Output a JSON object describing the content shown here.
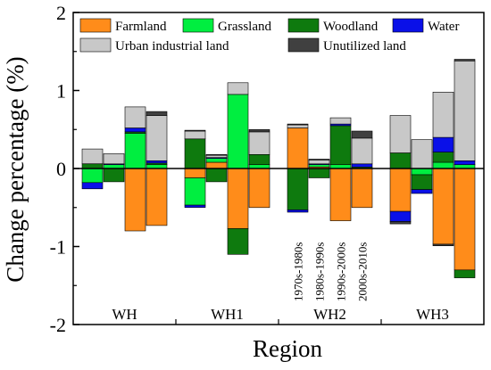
{
  "chart_data": {
    "type": "bar",
    "stacked": true,
    "xlabel": "Region",
    "ylabel": "Change percentage (%)",
    "ylim": [
      -2,
      2
    ],
    "yticks": [
      -2,
      -1,
      0,
      1,
      2
    ],
    "regions": [
      "WH",
      "WH1",
      "WH2",
      "WH3"
    ],
    "periods": [
      "1970s-1980s",
      "1980s-1990s",
      "1990s-2000s",
      "2000s-2010s"
    ],
    "period_labels_shown_under": "WH2",
    "legend": [
      {
        "name": "Farmland",
        "color": "#FF8C1A"
      },
      {
        "name": "Grassland",
        "color": "#00EE40"
      },
      {
        "name": "Woodland",
        "color": "#0E7A0E"
      },
      {
        "name": "Water",
        "color": "#0A10E8"
      },
      {
        "name": "Urban industrial land",
        "color": "#C8C8C8"
      },
      {
        "name": "Unutilized land",
        "color": "#404040"
      }
    ],
    "series_order": [
      "Farmland",
      "Grassland",
      "Woodland",
      "Water",
      "Urban industrial land",
      "Unutilized land"
    ],
    "bars": [
      {
        "region": "WH",
        "period": "1970s-1980s",
        "values": {
          "Farmland": 0.0,
          "Grassland": -0.18,
          "Woodland": 0.06,
          "Water": -0.08,
          "Urban industrial land": 0.19,
          "Unutilized land": 0.0
        }
      },
      {
        "region": "WH",
        "period": "1980s-1990s",
        "values": {
          "Farmland": 0.0,
          "Grassland": 0.05,
          "Woodland": -0.17,
          "Water": 0.01,
          "Urban industrial land": 0.13,
          "Unutilized land": 0.0
        }
      },
      {
        "region": "WH",
        "period": "1990s-2000s",
        "values": {
          "Farmland": -0.8,
          "Grassland": 0.45,
          "Woodland": 0.02,
          "Water": 0.05,
          "Urban industrial land": 0.27,
          "Unutilized land": 0.0
        }
      },
      {
        "region": "WH",
        "period": "2000s-2010s",
        "values": {
          "Farmland": -0.73,
          "Grassland": 0.05,
          "Woodland": 0.02,
          "Water": 0.03,
          "Urban industrial land": 0.58,
          "Unutilized land": 0.05
        }
      },
      {
        "region": "WH1",
        "period": "1970s-1980s",
        "values": {
          "Farmland": -0.12,
          "Grassland": -0.35,
          "Woodland": 0.38,
          "Water": -0.03,
          "Urban industrial land": 0.1,
          "Unutilized land": 0.01
        }
      },
      {
        "region": "WH1",
        "period": "1980s-1990s",
        "values": {
          "Farmland": 0.08,
          "Grassland": 0.05,
          "Woodland": -0.17,
          "Water": 0.01,
          "Urban industrial land": 0.03,
          "Unutilized land": 0.01
        }
      },
      {
        "region": "WH1",
        "period": "1990s-2000s",
        "values": {
          "Farmland": -0.77,
          "Grassland": 0.95,
          "Woodland": -0.33,
          "Water": 0.0,
          "Urban industrial land": 0.15,
          "Unutilized land": 0.0
        }
      },
      {
        "region": "WH1",
        "period": "2000s-2010s",
        "values": {
          "Farmland": -0.5,
          "Grassland": 0.05,
          "Woodland": 0.13,
          "Water": 0.0,
          "Urban industrial land": 0.29,
          "Unutilized land": 0.03
        }
      },
      {
        "region": "WH2",
        "period": "1970s-1980s",
        "values": {
          "Farmland": 0.52,
          "Grassland": 0.0,
          "Woodland": -0.53,
          "Water": -0.03,
          "Urban industrial land": 0.04,
          "Unutilized land": 0.01
        }
      },
      {
        "region": "WH2",
        "period": "1980s-1990s",
        "values": {
          "Farmland": 0.02,
          "Grassland": 0.03,
          "Woodland": -0.12,
          "Water": 0.01,
          "Urban industrial land": 0.05,
          "Unutilized land": 0.01
        }
      },
      {
        "region": "WH2",
        "period": "1990s-2000s",
        "values": {
          "Farmland": -0.67,
          "Grassland": 0.05,
          "Woodland": 0.5,
          "Water": 0.02,
          "Urban industrial land": 0.08,
          "Unutilized land": 0.0
        }
      },
      {
        "region": "WH2",
        "period": "2000s-2010s",
        "values": {
          "Farmland": -0.5,
          "Grassland": 0.0,
          "Woodland": 0.02,
          "Water": 0.04,
          "Urban industrial land": 0.33,
          "Unutilized land": 0.09
        }
      },
      {
        "region": "WH3",
        "period": "1970s-1980s",
        "values": {
          "Farmland": -0.55,
          "Grassland": 0.0,
          "Woodland": 0.2,
          "Water": -0.13,
          "Urban industrial land": 0.48,
          "Unutilized land": -0.03
        }
      },
      {
        "region": "WH3",
        "period": "1980s-1990s",
        "values": {
          "Farmland": 0.0,
          "Grassland": -0.08,
          "Woodland": -0.19,
          "Water": -0.05,
          "Urban industrial land": 0.37,
          "Unutilized land": 0.0
        }
      },
      {
        "region": "WH3",
        "period": "1990s-2000s",
        "values": {
          "Farmland": -0.97,
          "Grassland": 0.08,
          "Woodland": 0.13,
          "Water": 0.19,
          "Urban industrial land": 0.58,
          "Unutilized land": -0.02
        }
      },
      {
        "region": "WH3",
        "period": "2000s-2010s",
        "values": {
          "Farmland": -1.3,
          "Grassland": 0.05,
          "Woodland": -0.1,
          "Water": 0.05,
          "Urban industrial land": 1.28,
          "Unutilized land": 0.02
        }
      }
    ]
  }
}
